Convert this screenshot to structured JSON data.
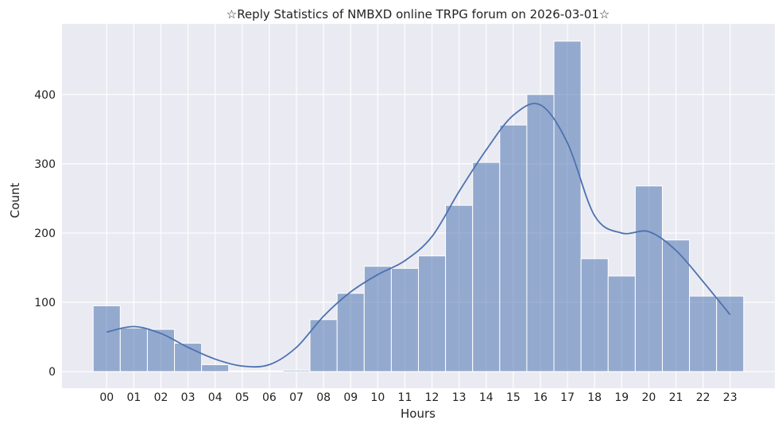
{
  "chart_data": {
    "type": "bar",
    "title": "☆Reply Statistics of NMBXD online TRPG forum on 2026-03-01☆",
    "xlabel": "Hours",
    "ylabel": "Count",
    "categories": [
      "00",
      "01",
      "02",
      "03",
      "04",
      "05",
      "06",
      "07",
      "08",
      "09",
      "10",
      "11",
      "12",
      "13",
      "14",
      "15",
      "16",
      "17",
      "18",
      "19",
      "20",
      "21",
      "22",
      "23"
    ],
    "values": [
      95,
      63,
      61,
      41,
      10,
      1,
      1,
      2,
      75,
      113,
      152,
      149,
      167,
      240,
      302,
      356,
      400,
      477,
      163,
      138,
      268,
      190,
      109,
      109
    ],
    "kde": [
      57,
      65,
      55,
      35,
      18,
      8,
      10,
      35,
      80,
      115,
      140,
      160,
      195,
      260,
      320,
      370,
      385,
      330,
      225,
      200,
      202,
      175,
      130,
      82
    ],
    "yticks": [
      0,
      100,
      200,
      300,
      400
    ],
    "xlim": [
      -1.65,
      24.65
    ],
    "ylim": [
      -24,
      502
    ],
    "grid": true,
    "colors": {
      "bar": "#4c72b0",
      "background": "#eaeaf2",
      "grid": "#ffffff"
    }
  }
}
